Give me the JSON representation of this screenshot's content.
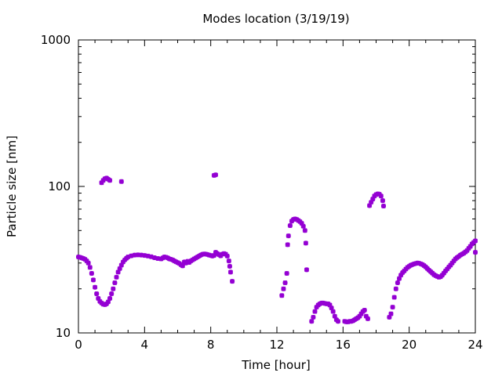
{
  "chart_data": {
    "type": "scatter",
    "title": "Modes location (3/19/19)",
    "xlabel": "Time [hour]",
    "ylabel": "Particle size [nm]",
    "xlim": [
      0,
      24
    ],
    "ylim": [
      10,
      1000
    ],
    "yscale": "log",
    "xticks": [
      0,
      4,
      8,
      12,
      16,
      20,
      24
    ],
    "xtick_labels": [
      "0",
      "4",
      "8",
      "12",
      "16",
      "20",
      "24"
    ],
    "yticks": [
      10,
      100,
      1000
    ],
    "ytick_labels": [
      "10",
      "100",
      "1000"
    ],
    "grid": false,
    "marker_color": "#9400d3",
    "series": [
      {
        "points": [
          [
            0.0,
            33.0
          ],
          [
            0.1,
            32.8
          ],
          [
            0.2,
            32.5
          ],
          [
            0.3,
            32.2
          ],
          [
            0.4,
            31.8
          ],
          [
            0.5,
            31.0
          ],
          [
            0.6,
            30.0
          ],
          [
            0.7,
            28.0
          ],
          [
            0.8,
            25.5
          ],
          [
            0.9,
            23.0
          ],
          [
            1.0,
            20.5
          ],
          [
            1.1,
            18.5
          ],
          [
            1.2,
            17.2
          ],
          [
            1.3,
            16.4
          ],
          [
            1.4,
            16.0
          ],
          [
            1.5,
            15.7
          ],
          [
            1.6,
            15.6
          ],
          [
            1.7,
            15.8
          ],
          [
            1.8,
            16.3
          ],
          [
            1.9,
            17.2
          ],
          [
            2.0,
            18.5
          ],
          [
            2.1,
            20.0
          ],
          [
            2.2,
            22.0
          ],
          [
            2.3,
            24.0
          ],
          [
            2.4,
            26.0
          ],
          [
            2.5,
            27.5
          ],
          [
            2.6,
            29.0
          ],
          [
            2.7,
            30.5
          ],
          [
            2.8,
            31.5
          ],
          [
            2.9,
            32.3
          ],
          [
            3.0,
            33.0
          ],
          [
            3.2,
            33.6
          ],
          [
            3.4,
            34.0
          ],
          [
            3.6,
            34.1
          ],
          [
            3.8,
            34.0
          ],
          [
            4.0,
            33.8
          ],
          [
            4.2,
            33.5
          ],
          [
            4.4,
            33.1
          ],
          [
            4.6,
            32.6
          ],
          [
            4.8,
            32.2
          ],
          [
            5.0,
            32.0
          ],
          [
            5.1,
            32.5
          ],
          [
            5.2,
            33.0
          ],
          [
            5.3,
            32.8
          ],
          [
            5.4,
            32.5
          ],
          [
            5.5,
            32.0
          ],
          [
            5.6,
            31.8
          ],
          [
            5.7,
            31.5
          ],
          [
            5.8,
            31.0
          ],
          [
            5.9,
            30.6
          ],
          [
            6.0,
            30.2
          ],
          [
            6.1,
            29.8
          ],
          [
            6.2,
            29.2
          ],
          [
            6.3,
            28.7
          ],
          [
            6.4,
            30.5
          ],
          [
            6.5,
            30.0
          ],
          [
            6.6,
            30.8
          ],
          [
            6.7,
            30.3
          ],
          [
            6.8,
            31.0
          ],
          [
            6.9,
            31.5
          ],
          [
            7.0,
            32.0
          ],
          [
            7.1,
            32.5
          ],
          [
            7.2,
            33.0
          ],
          [
            7.3,
            33.5
          ],
          [
            7.4,
            34.0
          ],
          [
            7.5,
            34.4
          ],
          [
            7.6,
            34.6
          ],
          [
            7.7,
            34.5
          ],
          [
            7.8,
            34.3
          ],
          [
            7.9,
            34.0
          ],
          [
            8.0,
            33.8
          ],
          [
            8.1,
            33.5
          ],
          [
            8.2,
            33.8
          ],
          [
            8.3,
            35.5
          ],
          [
            8.4,
            34.8
          ],
          [
            8.5,
            34.2
          ],
          [
            8.6,
            33.6
          ],
          [
            8.7,
            34.5
          ],
          [
            8.8,
            34.8
          ],
          [
            8.9,
            34.5
          ],
          [
            9.0,
            33.5
          ],
          [
            9.1,
            31.0
          ],
          [
            9.15,
            28.5
          ],
          [
            9.2,
            26.0
          ],
          [
            9.3,
            22.5
          ],
          [
            1.4,
            106.0
          ],
          [
            1.5,
            110.0
          ],
          [
            1.6,
            113.0
          ],
          [
            1.7,
            114.0
          ],
          [
            1.8,
            112.0
          ],
          [
            1.9,
            110.0
          ],
          [
            2.6,
            108.0
          ],
          [
            8.2,
            119.0
          ],
          [
            8.3,
            120.0
          ],
          [
            12.3,
            18.0
          ],
          [
            12.4,
            20.0
          ],
          [
            12.5,
            22.0
          ],
          [
            12.6,
            25.5
          ],
          [
            12.65,
            40.0
          ],
          [
            12.7,
            46.0
          ],
          [
            12.8,
            54.0
          ],
          [
            12.9,
            58.0
          ],
          [
            13.0,
            59.5
          ],
          [
            13.1,
            60.0
          ],
          [
            13.2,
            59.5
          ],
          [
            13.3,
            58.5
          ],
          [
            13.4,
            57.5
          ],
          [
            13.5,
            56.0
          ],
          [
            13.6,
            53.5
          ],
          [
            13.7,
            50.0
          ],
          [
            13.75,
            41.0
          ],
          [
            13.8,
            27.0
          ],
          [
            14.1,
            12.0
          ],
          [
            14.2,
            12.8
          ],
          [
            14.3,
            14.0
          ],
          [
            14.4,
            15.0
          ],
          [
            14.5,
            15.5
          ],
          [
            14.6,
            15.8
          ],
          [
            14.7,
            16.0
          ],
          [
            14.8,
            16.0
          ],
          [
            14.9,
            15.9
          ],
          [
            15.0,
            15.8
          ],
          [
            15.1,
            15.8
          ],
          [
            15.2,
            15.5
          ],
          [
            15.3,
            14.8
          ],
          [
            15.4,
            14.0
          ],
          [
            15.5,
            13.0
          ],
          [
            15.6,
            12.3
          ],
          [
            15.7,
            12.0
          ],
          [
            16.1,
            12.0
          ],
          [
            16.2,
            11.9
          ],
          [
            16.3,
            11.9
          ],
          [
            16.4,
            12.0
          ],
          [
            16.5,
            12.0
          ],
          [
            16.6,
            12.1
          ],
          [
            16.7,
            12.3
          ],
          [
            16.8,
            12.5
          ],
          [
            16.9,
            12.7
          ],
          [
            17.0,
            13.0
          ],
          [
            17.1,
            13.5
          ],
          [
            17.2,
            14.0
          ],
          [
            17.3,
            14.3
          ],
          [
            17.4,
            13.0
          ],
          [
            17.5,
            12.5
          ],
          [
            17.6,
            74.0
          ],
          [
            17.7,
            78.0
          ],
          [
            17.8,
            82.0
          ],
          [
            17.9,
            86.0
          ],
          [
            18.0,
            88.0
          ],
          [
            18.1,
            89.0
          ],
          [
            18.2,
            88.5
          ],
          [
            18.3,
            86.0
          ],
          [
            18.4,
            80.0
          ],
          [
            18.45,
            73.5
          ],
          [
            18.8,
            12.8
          ],
          [
            18.9,
            13.5
          ],
          [
            19.0,
            15.0
          ],
          [
            19.1,
            17.5
          ],
          [
            19.2,
            20.0
          ],
          [
            19.3,
            22.0
          ],
          [
            19.4,
            23.5
          ],
          [
            19.5,
            24.8
          ],
          [
            19.6,
            25.8
          ],
          [
            19.7,
            26.5
          ],
          [
            19.8,
            27.3
          ],
          [
            19.9,
            28.0
          ],
          [
            20.0,
            28.5
          ],
          [
            20.1,
            29.0
          ],
          [
            20.2,
            29.3
          ],
          [
            20.3,
            29.6
          ],
          [
            20.4,
            29.8
          ],
          [
            20.5,
            30.0
          ],
          [
            20.6,
            29.9
          ],
          [
            20.7,
            29.6
          ],
          [
            20.8,
            29.3
          ],
          [
            20.9,
            28.8
          ],
          [
            21.0,
            28.2
          ],
          [
            21.1,
            27.5
          ],
          [
            21.2,
            26.8
          ],
          [
            21.3,
            26.2
          ],
          [
            21.4,
            25.6
          ],
          [
            21.5,
            25.0
          ],
          [
            21.6,
            24.6
          ],
          [
            21.7,
            24.3
          ],
          [
            21.8,
            24.0
          ],
          [
            21.9,
            24.2
          ],
          [
            22.0,
            24.8
          ],
          [
            22.1,
            25.6
          ],
          [
            22.2,
            26.5
          ],
          [
            22.3,
            27.3
          ],
          [
            22.4,
            28.2
          ],
          [
            22.5,
            29.0
          ],
          [
            22.6,
            30.0
          ],
          [
            22.7,
            31.0
          ],
          [
            22.8,
            32.0
          ],
          [
            22.9,
            32.7
          ],
          [
            23.0,
            33.3
          ],
          [
            23.1,
            34.0
          ],
          [
            23.2,
            34.5
          ],
          [
            23.3,
            35.0
          ],
          [
            23.4,
            35.7
          ],
          [
            23.5,
            36.5
          ],
          [
            23.6,
            37.8
          ],
          [
            23.7,
            39.0
          ],
          [
            23.8,
            40.5
          ],
          [
            23.9,
            41.5
          ],
          [
            24.0,
            42.5
          ],
          [
            24.0,
            35.5
          ]
        ]
      }
    ]
  }
}
